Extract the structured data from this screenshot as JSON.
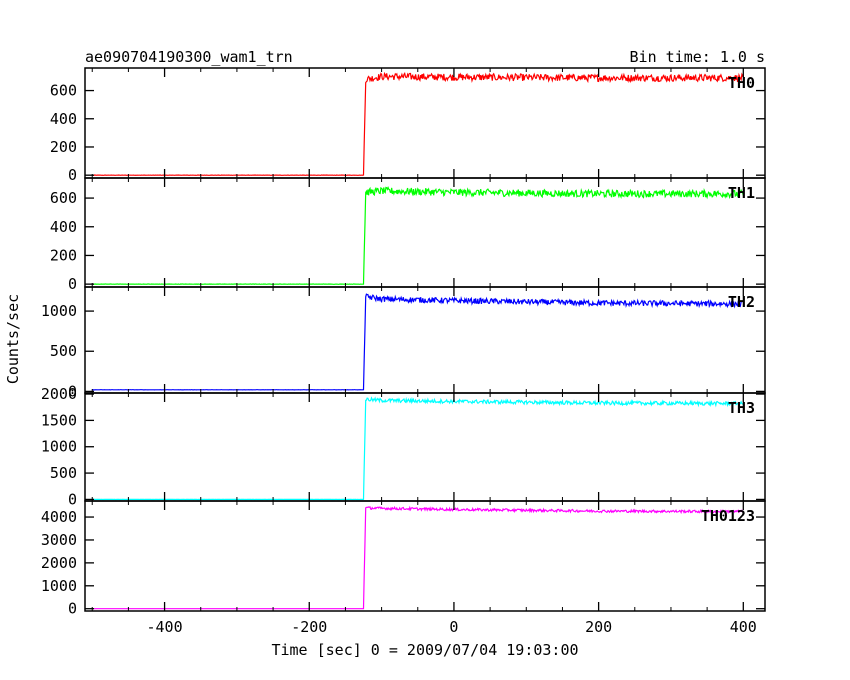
{
  "header": {
    "title": "ae090704190300_wam1_trn",
    "bin_time": "Bin time: 1.0 s"
  },
  "chart_data": {
    "type": "line",
    "title": "ae090704190300_wam1_trn",
    "subtitle": "Bin time: 1.0 s",
    "xlabel": "Time [sec] 0 = 2009/07/04 19:03:00",
    "ylabel": "Counts/sec",
    "xlim": [
      -510,
      430
    ],
    "x_ticks": [
      -400,
      -200,
      0,
      200,
      400
    ],
    "grid": false,
    "trigger_time": -120,
    "series": [
      {
        "name": "TH0",
        "color": "#ff0000",
        "ylim": [
          -20,
          760
        ],
        "y_ticks": [
          0,
          200,
          400,
          600
        ],
        "points": [
          [
            -500,
            0
          ],
          [
            -125,
            0
          ],
          [
            -122,
            680
          ],
          [
            -100,
            700
          ],
          [
            0,
            695
          ],
          [
            200,
            690
          ],
          [
            400,
            690
          ]
        ],
        "noise_amplitude": 25
      },
      {
        "name": "TH1",
        "color": "#00ff00",
        "ylim": [
          -20,
          740
        ],
        "y_ticks": [
          0,
          200,
          400,
          600
        ],
        "points": [
          [
            -500,
            0
          ],
          [
            -125,
            0
          ],
          [
            -122,
            640
          ],
          [
            -100,
            650
          ],
          [
            0,
            640
          ],
          [
            200,
            630
          ],
          [
            400,
            630
          ]
        ],
        "noise_amplitude": 25
      },
      {
        "name": "TH2",
        "color": "#0000ff",
        "ylim": [
          -20,
          1300
        ],
        "y_ticks": [
          0,
          500,
          1000
        ],
        "points": [
          [
            -500,
            20
          ],
          [
            -125,
            20
          ],
          [
            -122,
            1180
          ],
          [
            -100,
            1150
          ],
          [
            0,
            1130
          ],
          [
            200,
            1100
          ],
          [
            400,
            1090
          ]
        ],
        "noise_amplitude": 35
      },
      {
        "name": "TH3",
        "color": "#00ffff",
        "ylim": [
          -30,
          2020
        ],
        "y_ticks": [
          0,
          500,
          1000,
          1500,
          2000
        ],
        "points": [
          [
            -500,
            0
          ],
          [
            -125,
            0
          ],
          [
            -122,
            1900
          ],
          [
            -100,
            1880
          ],
          [
            0,
            1860
          ],
          [
            200,
            1830
          ],
          [
            400,
            1820
          ]
        ],
        "noise_amplitude": 35
      },
      {
        "name": "TH0123",
        "color": "#ff00ff",
        "ylim": [
          -100,
          4700
        ],
        "y_ticks": [
          0,
          1000,
          2000,
          3000,
          4000
        ],
        "points": [
          [
            -500,
            0
          ],
          [
            -125,
            0
          ],
          [
            -122,
            4400
          ],
          [
            -100,
            4380
          ],
          [
            0,
            4330
          ],
          [
            200,
            4260
          ],
          [
            400,
            4240
          ]
        ],
        "noise_amplitude": 55
      }
    ]
  }
}
